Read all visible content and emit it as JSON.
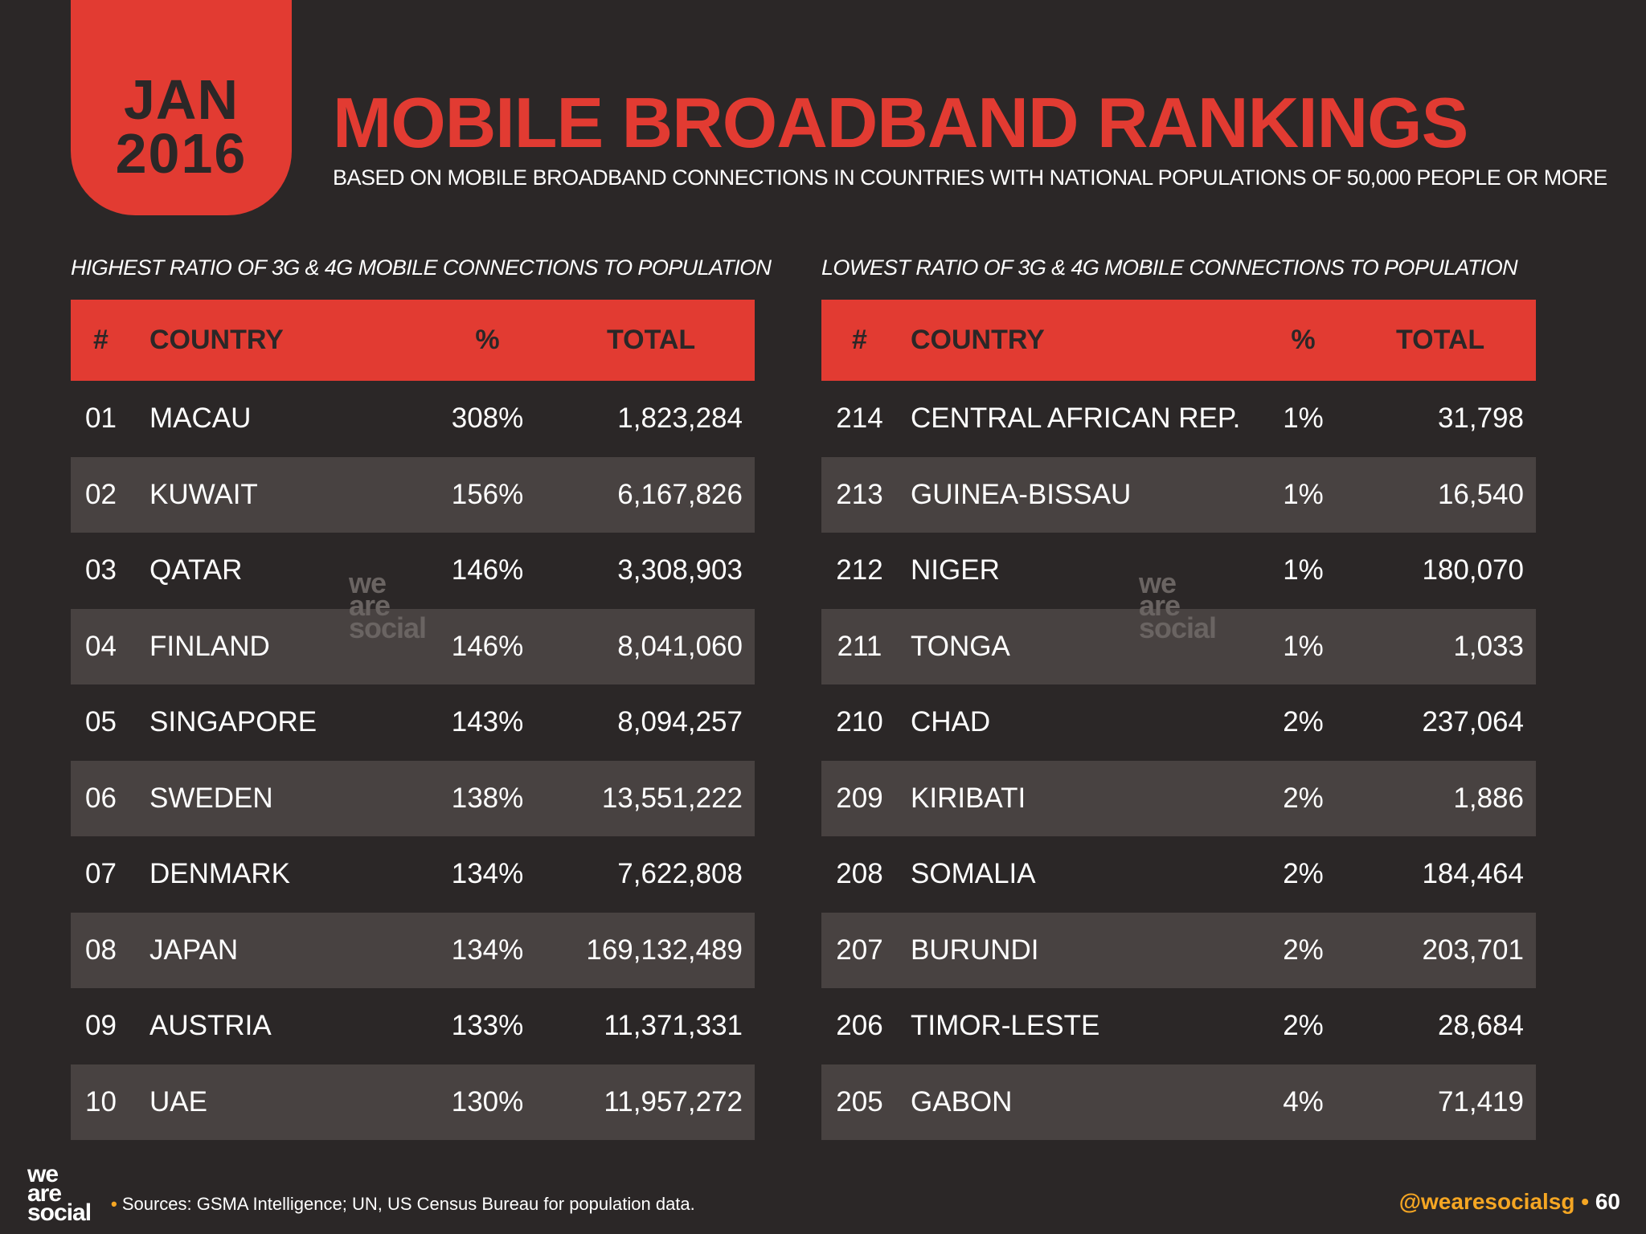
{
  "header": {
    "month": "JAN",
    "year": "2016",
    "title": "MOBILE BROADBAND RANKINGS",
    "subtitle": "BASED ON MOBILE BROADBAND CONNECTIONS IN COUNTRIES WITH NATIONAL POPULATIONS OF 50,000 PEOPLE OR MORE"
  },
  "highest": {
    "heading": "HIGHEST RATIO OF 3G & 4G MOBILE CONNECTIONS TO POPULATION",
    "columns": {
      "rank": "#",
      "country": "COUNTRY",
      "pct": "%",
      "total": "TOTAL"
    },
    "rows": [
      {
        "rank": "01",
        "country": "MACAU",
        "pct": "308%",
        "total": "1,823,284"
      },
      {
        "rank": "02",
        "country": "KUWAIT",
        "pct": "156%",
        "total": "6,167,826"
      },
      {
        "rank": "03",
        "country": "QATAR",
        "pct": "146%",
        "total": "3,308,903"
      },
      {
        "rank": "04",
        "country": "FINLAND",
        "pct": "146%",
        "total": "8,041,060"
      },
      {
        "rank": "05",
        "country": "SINGAPORE",
        "pct": "143%",
        "total": "8,094,257"
      },
      {
        "rank": "06",
        "country": "SWEDEN",
        "pct": "138%",
        "total": "13,551,222"
      },
      {
        "rank": "07",
        "country": "DENMARK",
        "pct": "134%",
        "total": "7,622,808"
      },
      {
        "rank": "08",
        "country": "JAPAN",
        "pct": "134%",
        "total": "169,132,489"
      },
      {
        "rank": "09",
        "country": "AUSTRIA",
        "pct": "133%",
        "total": "11,371,331"
      },
      {
        "rank": "10",
        "country": "UAE",
        "pct": "130%",
        "total": "11,957,272"
      }
    ]
  },
  "lowest": {
    "heading": "LOWEST RATIO OF 3G & 4G MOBILE CONNECTIONS TO POPULATION",
    "columns": {
      "rank": "#",
      "country": "COUNTRY",
      "pct": "%",
      "total": "TOTAL"
    },
    "rows": [
      {
        "rank": "214",
        "country": "CENTRAL AFRICAN REP.",
        "pct": "1%",
        "total": "31,798"
      },
      {
        "rank": "213",
        "country": "GUINEA-BISSAU",
        "pct": "1%",
        "total": "16,540"
      },
      {
        "rank": "212",
        "country": "NIGER",
        "pct": "1%",
        "total": "180,070"
      },
      {
        "rank": "211",
        "country": "TONGA",
        "pct": "1%",
        "total": "1,033"
      },
      {
        "rank": "210",
        "country": "CHAD",
        "pct": "2%",
        "total": "237,064"
      },
      {
        "rank": "209",
        "country": "KIRIBATI",
        "pct": "2%",
        "total": "1,886"
      },
      {
        "rank": "208",
        "country": "SOMALIA",
        "pct": "2%",
        "total": "184,464"
      },
      {
        "rank": "207",
        "country": "BURUNDI",
        "pct": "2%",
        "total": "203,701"
      },
      {
        "rank": "206",
        "country": "TIMOR-LESTE",
        "pct": "2%",
        "total": "28,684"
      },
      {
        "rank": "205",
        "country": "GABON",
        "pct": "4%",
        "total": "71,419"
      }
    ]
  },
  "watermark": {
    "line1": "we",
    "line2": "are",
    "line3": "social"
  },
  "footer": {
    "logo_line1": "we",
    "logo_line2": "are",
    "logo_line3": "social",
    "bullet": "•",
    "sources": "Sources: GSMA Intelligence; UN, US Census Bureau for population data.",
    "handle": "@wearesocialsg",
    "separator": "•",
    "page_number": "60"
  },
  "colors": {
    "accent": "#e23b32",
    "background": "#2b2727",
    "row_alt": "#484241",
    "handle": "#f5a623"
  }
}
